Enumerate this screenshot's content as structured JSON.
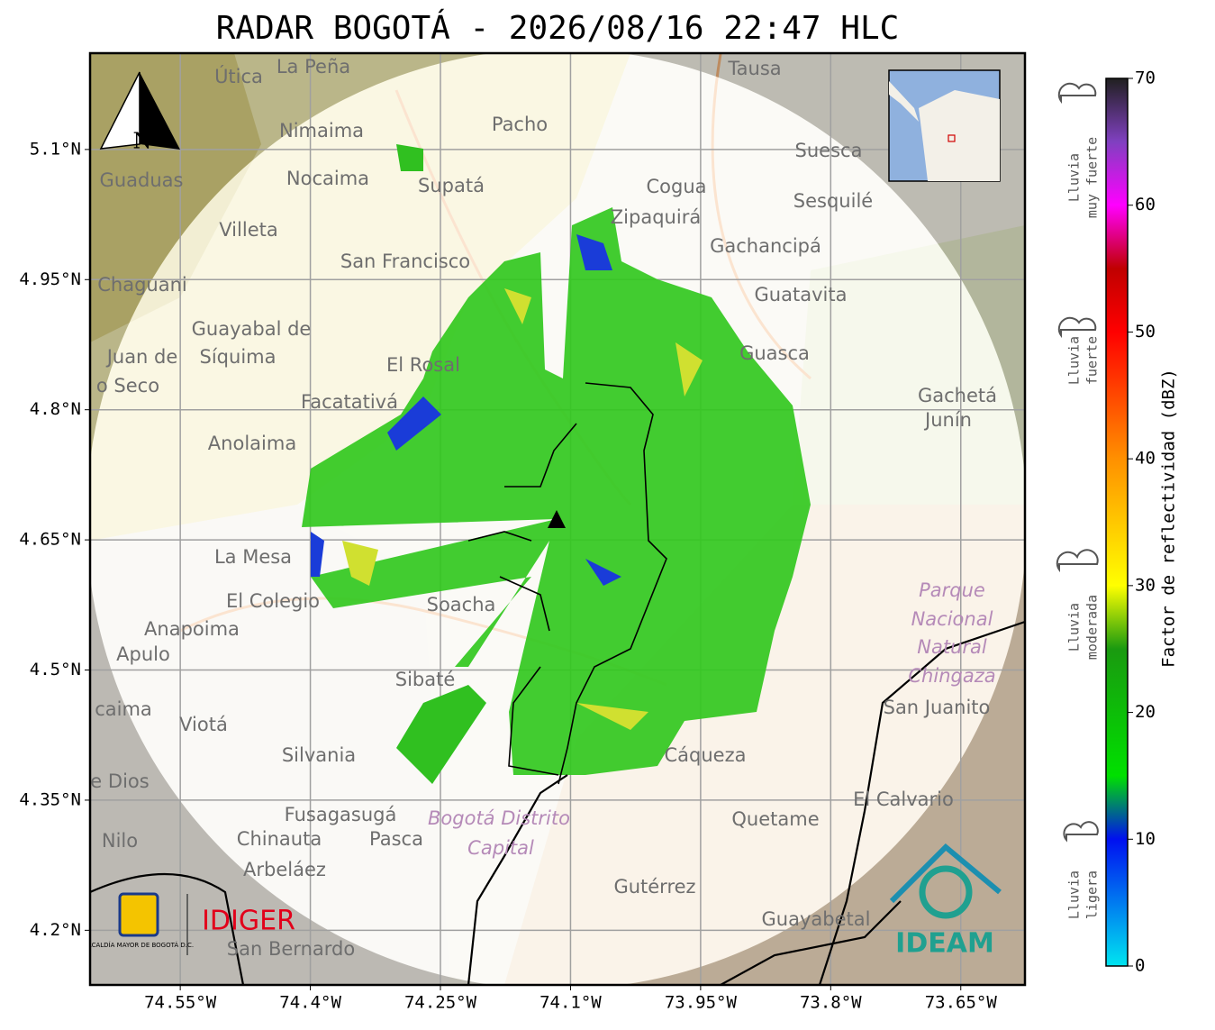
{
  "title": "RADAR BOGOTÁ - 2026/08/16 22:47 HLC",
  "map": {
    "xlim": [
      -74.654,
      -73.576
    ],
    "ylim": [
      4.137,
      5.211
    ],
    "xticks": [
      {
        "value": -74.55,
        "label": "74.55°W"
      },
      {
        "value": -74.4,
        "label": "74.4°W"
      },
      {
        "value": -74.25,
        "label": "74.25°W"
      },
      {
        "value": -74.1,
        "label": "74.1°W"
      },
      {
        "value": -73.95,
        "label": "73.95°W"
      },
      {
        "value": -73.8,
        "label": "73.8°W"
      },
      {
        "value": -73.65,
        "label": "73.65°W"
      }
    ],
    "yticks": [
      {
        "value": 5.1,
        "label": "5.1°N"
      },
      {
        "value": 4.95,
        "label": "4.95°N"
      },
      {
        "value": 4.8,
        "label": "4.8°N"
      },
      {
        "value": 4.65,
        "label": "4.65°N"
      },
      {
        "value": 4.5,
        "label": "4.5°N"
      },
      {
        "value": 4.35,
        "label": "4.35°N"
      },
      {
        "value": 4.2,
        "label": "4.2°N"
      }
    ],
    "grid": true,
    "places": [
      "La Peña",
      "Útica",
      "Tausa",
      "Pacho",
      "Nimaima",
      "Suesca",
      "Guaduas",
      "Nocaima",
      "Supatá",
      "Cogua",
      "Sesquilé",
      "Zipaquirá",
      "Villeta",
      "Gachancipá",
      "San Francisco",
      "Chaguani",
      "Guatavita",
      "Guayabal de",
      "Síquima",
      "Juan de",
      "Guasca",
      "El Rosal",
      "o Seco",
      "Gachetá",
      "Junín",
      "Facatativá",
      "Anolaima",
      "La Mesa",
      "El Colegio",
      "Soacha",
      "Parque",
      "Nacional",
      "Natural",
      "Chingaza",
      "Anapoima",
      "Apulo",
      "Sibaté",
      "San Juanito",
      "caima",
      "Viotá",
      "Silvania",
      "Cáqueza",
      "e Dios",
      "El Calvario",
      "Fusagasugá",
      "Bogotá Distrito",
      "Capital",
      "Quetame",
      "Nilo",
      "Chinauta",
      "Pasca",
      "Arbeláez",
      "Gutérrez",
      "Guayabetal",
      "San Bernardo"
    ],
    "north": "N",
    "logos": {
      "alcaldia": "ALCALDÍA MAYOR DE BOGOTÁ D.C.",
      "idiger": "IDIGER",
      "ideam": "IDEAM"
    }
  },
  "colorbar": {
    "label": "Factor de reflectividad (dBZ)",
    "lim": [
      0,
      70
    ],
    "ticks": [
      0,
      10,
      20,
      30,
      40,
      50,
      60,
      70
    ],
    "scale": [
      [
        0,
        "#00e5f0"
      ],
      [
        10,
        "#0010f0"
      ],
      [
        15,
        "#00e000"
      ],
      [
        25,
        "#1a9a10"
      ],
      [
        30,
        "#ffff00"
      ],
      [
        40,
        "#ff9000"
      ],
      [
        50,
        "#ff0000"
      ],
      [
        55,
        "#c00000"
      ],
      [
        60,
        "#ff00ff"
      ],
      [
        65,
        "#8040c0"
      ],
      [
        70,
        "#202020"
      ]
    ],
    "categories": [
      [
        "Lluvia",
        "muy fuerte"
      ],
      [
        "Lluvia",
        "fuerte"
      ],
      [
        "Lluvia",
        "moderada"
      ],
      [
        "Lluvia",
        "ligera"
      ]
    ]
  }
}
